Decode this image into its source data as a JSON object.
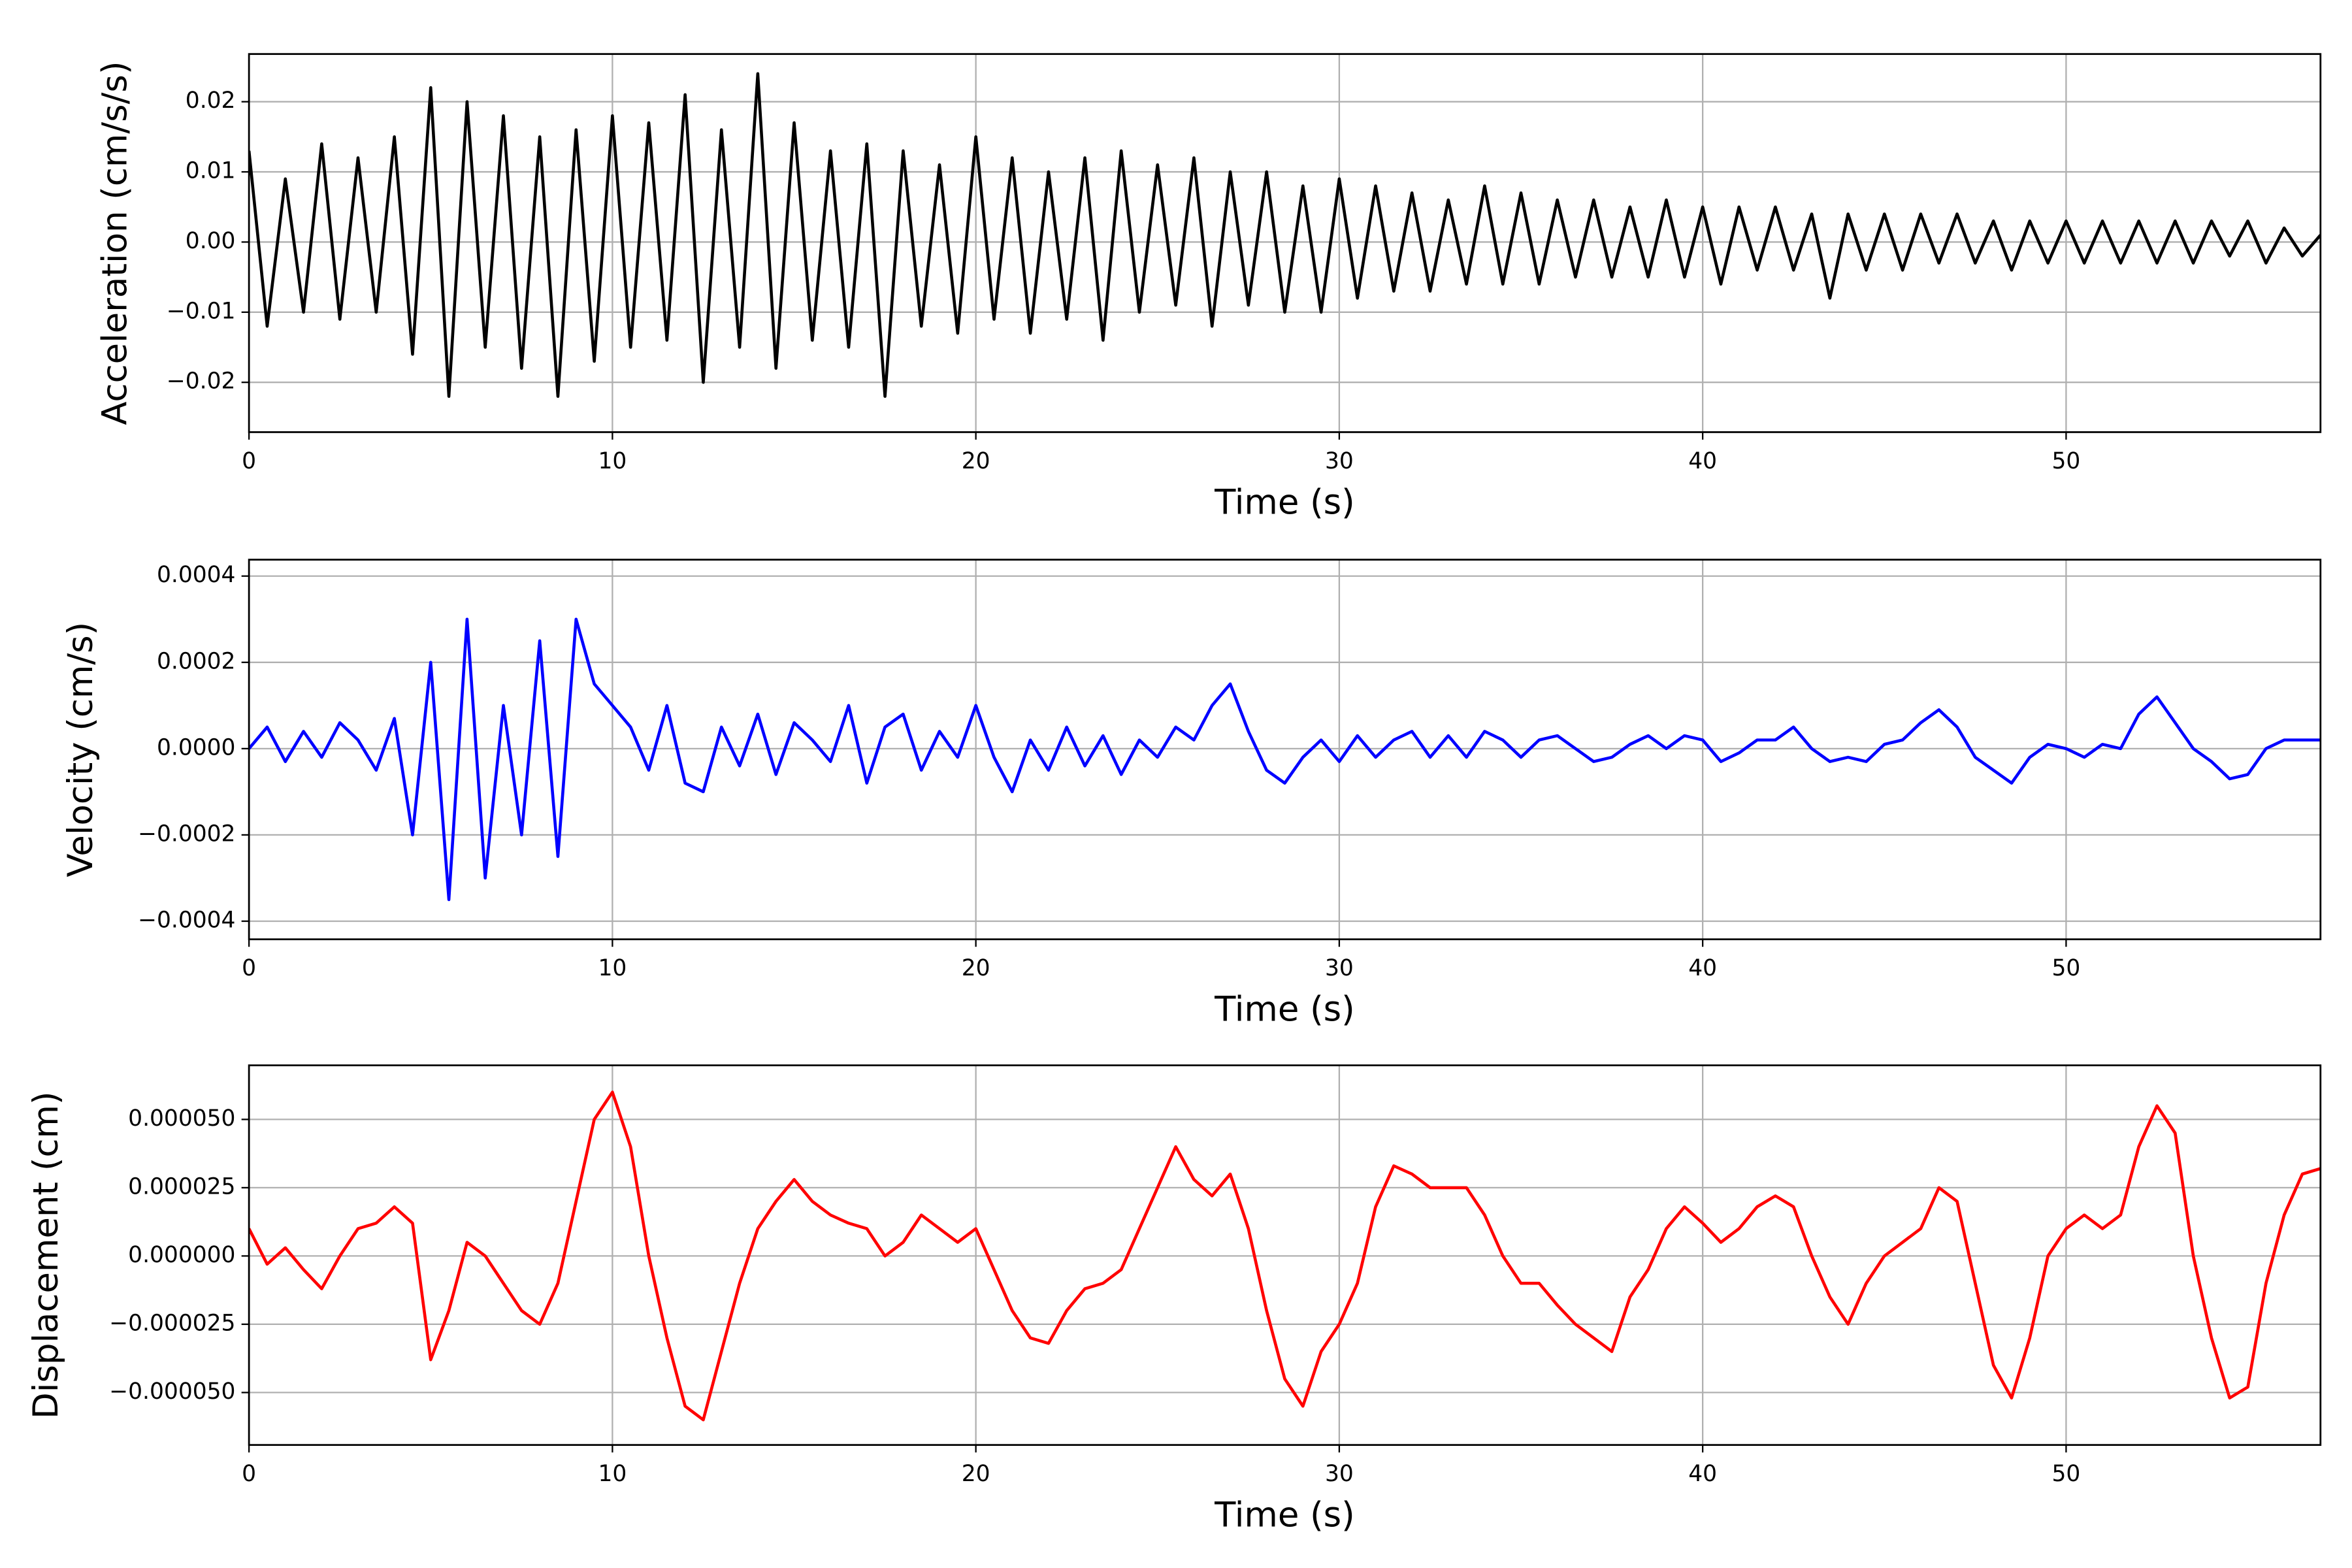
{
  "chart_data": [
    {
      "type": "line",
      "ylabel": "Acceleration (cm/s/s)",
      "xlabel": "Time (s)",
      "color": "#000000",
      "grid": true,
      "xlim": [
        0,
        57
      ],
      "xticks": [
        0,
        10,
        20,
        30,
        40,
        50
      ],
      "ylim": [
        -0.0271,
        0.0268
      ],
      "yticks": [
        {
          "value": -0.02,
          "label": "−0.02"
        },
        {
          "value": -0.01,
          "label": "−0.01"
        },
        {
          "value": 0,
          "label": "0.00"
        },
        {
          "value": 0.01,
          "label": "0.01"
        },
        {
          "value": 0.02,
          "label": "0.02"
        }
      ],
      "x": [
        0,
        0.5,
        1,
        1.5,
        2,
        2.5,
        3,
        3.5,
        4,
        4.5,
        5,
        5.5,
        6,
        6.5,
        7,
        7.5,
        8,
        8.5,
        9,
        9.5,
        10,
        10.5,
        11,
        11.5,
        12,
        12.5,
        13,
        13.5,
        14,
        14.5,
        15,
        15.5,
        16,
        16.5,
        17,
        17.5,
        18,
        18.5,
        19,
        19.5,
        20,
        20.5,
        21,
        21.5,
        22,
        22.5,
        23,
        23.5,
        24,
        24.5,
        25,
        25.5,
        26,
        26.5,
        27,
        27.5,
        28,
        28.5,
        29,
        29.5,
        30,
        30.5,
        31,
        31.5,
        32,
        32.5,
        33,
        33.5,
        34,
        34.5,
        35,
        35.5,
        36,
        36.5,
        37,
        37.5,
        38,
        38.5,
        39,
        39.5,
        40,
        40.5,
        41,
        41.5,
        42,
        42.5,
        43,
        43.5,
        44,
        44.5,
        45,
        45.5,
        46,
        46.5,
        47,
        47.5,
        48,
        48.5,
        49,
        49.5,
        50,
        50.5,
        51,
        51.5,
        52,
        52.5,
        53,
        53.5,
        54,
        54.5,
        55,
        55.5,
        56,
        56.5,
        57
      ],
      "values": [
        0.013,
        -0.012,
        0.009,
        -0.01,
        0.014,
        -0.011,
        0.012,
        -0.01,
        0.015,
        -0.016,
        0.022,
        -0.022,
        0.02,
        -0.015,
        0.018,
        -0.018,
        0.015,
        -0.022,
        0.016,
        -0.017,
        0.018,
        -0.015,
        0.017,
        -0.014,
        0.021,
        -0.02,
        0.016,
        -0.015,
        0.024,
        -0.018,
        0.017,
        -0.014,
        0.013,
        -0.015,
        0.014,
        -0.022,
        0.013,
        -0.012,
        0.011,
        -0.013,
        0.015,
        -0.011,
        0.012,
        -0.013,
        0.01,
        -0.011,
        0.012,
        -0.014,
        0.013,
        -0.01,
        0.011,
        -0.009,
        0.012,
        -0.012,
        0.01,
        -0.009,
        0.01,
        -0.01,
        0.008,
        -0.01,
        0.009,
        -0.008,
        0.008,
        -0.007,
        0.007,
        -0.007,
        0.006,
        -0.006,
        0.008,
        -0.006,
        0.007,
        -0.006,
        0.006,
        -0.005,
        0.006,
        -0.005,
        0.005,
        -0.005,
        0.006,
        -0.005,
        0.005,
        -0.006,
        0.005,
        -0.004,
        0.005,
        -0.004,
        0.004,
        -0.008,
        0.004,
        -0.004,
        0.004,
        -0.004,
        0.004,
        -0.003,
        0.004,
        -0.003,
        0.003,
        -0.004,
        0.003,
        -0.003,
        0.003,
        -0.003,
        0.003,
        -0.003,
        0.003,
        -0.003,
        0.003,
        -0.003,
        0.003,
        -0.002,
        0.003,
        -0.003,
        0.002,
        -0.002,
        0.001
      ]
    },
    {
      "type": "line",
      "ylabel": "Velocity (cm/s)",
      "xlabel": "Time (s)",
      "color": "#0000ff",
      "grid": true,
      "xlim": [
        0,
        57
      ],
      "xticks": [
        0,
        10,
        20,
        30,
        40,
        50
      ],
      "ylim": [
        -0.000442,
        0.000438
      ],
      "yticks": [
        {
          "value": -0.0004,
          "label": "−0.0004"
        },
        {
          "value": -0.0002,
          "label": "−0.0002"
        },
        {
          "value": 0,
          "label": "0.0000"
        },
        {
          "value": 0.0002,
          "label": "0.0002"
        },
        {
          "value": 0.0004,
          "label": "0.0004"
        }
      ],
      "x": [
        0,
        0.5,
        1,
        1.5,
        2,
        2.5,
        3,
        3.5,
        4,
        4.5,
        5,
        5.5,
        6,
        6.5,
        7,
        7.5,
        8,
        8.5,
        9,
        9.5,
        10,
        10.5,
        11,
        11.5,
        12,
        12.5,
        13,
        13.5,
        14,
        14.5,
        15,
        15.5,
        16,
        16.5,
        17,
        17.5,
        18,
        18.5,
        19,
        19.5,
        20,
        20.5,
        21,
        21.5,
        22,
        22.5,
        23,
        23.5,
        24,
        24.5,
        25,
        25.5,
        26,
        26.5,
        27,
        27.5,
        28,
        28.5,
        29,
        29.5,
        30,
        30.5,
        31,
        31.5,
        32,
        32.5,
        33,
        33.5,
        34,
        34.5,
        35,
        35.5,
        36,
        36.5,
        37,
        37.5,
        38,
        38.5,
        39,
        39.5,
        40,
        40.5,
        41,
        41.5,
        42,
        42.5,
        43,
        43.5,
        44,
        44.5,
        45,
        45.5,
        46,
        46.5,
        47,
        47.5,
        48,
        48.5,
        49,
        49.5,
        50,
        50.5,
        51,
        51.5,
        52,
        52.5,
        53,
        53.5,
        54,
        54.5,
        55,
        55.5,
        56,
        56.5,
        57
      ],
      "values": [
        0,
        5e-05,
        -3e-05,
        4e-05,
        -2e-05,
        6e-05,
        2e-05,
        -5e-05,
        7e-05,
        -0.0002,
        0.0002,
        -0.00035,
        0.0003,
        -0.0003,
        0.0001,
        -0.0002,
        0.00025,
        -0.00025,
        0.0003,
        0.00015,
        0.0001,
        5e-05,
        -5e-05,
        0.0001,
        -8e-05,
        -0.0001,
        5e-05,
        -4e-05,
        8e-05,
        -6e-05,
        6e-05,
        2e-05,
        -3e-05,
        0.0001,
        -8e-05,
        5e-05,
        8e-05,
        -5e-05,
        4e-05,
        -2e-05,
        0.0001,
        -2e-05,
        -0.0001,
        2e-05,
        -5e-05,
        5e-05,
        -4e-05,
        3e-05,
        -6e-05,
        2e-05,
        -2e-05,
        5e-05,
        2e-05,
        0.0001,
        0.00015,
        4e-05,
        -5e-05,
        -8e-05,
        -2e-05,
        2e-05,
        -3e-05,
        3e-05,
        -2e-05,
        2e-05,
        4e-05,
        -2e-05,
        3e-05,
        -2e-05,
        4e-05,
        2e-05,
        -2e-05,
        2e-05,
        3e-05,
        0,
        -3e-05,
        -2e-05,
        1e-05,
        3e-05,
        0,
        3e-05,
        2e-05,
        -3e-05,
        -1e-05,
        2e-05,
        2e-05,
        5e-05,
        0,
        -3e-05,
        -2e-05,
        -3e-05,
        1e-05,
        2e-05,
        6e-05,
        9e-05,
        5e-05,
        -2e-05,
        -5e-05,
        -8e-05,
        -2e-05,
        1e-05,
        0,
        -2e-05,
        1e-05,
        0,
        8e-05,
        0.00012,
        6e-05,
        0,
        -3e-05,
        -7e-05,
        -6e-05,
        0,
        2e-05,
        2e-05,
        2e-05
      ]
    },
    {
      "type": "line",
      "ylabel": "Displacement (cm)",
      "xlabel": "Time (s)",
      "color": "#ff0000",
      "grid": true,
      "xlim": [
        0,
        57
      ],
      "xticks": [
        0,
        10,
        20,
        30,
        40,
        50
      ],
      "ylim": [
        -6.92e-05,
        6.98e-05
      ],
      "yticks": [
        {
          "value": -5e-05,
          "label": "−0.000050"
        },
        {
          "value": -2.5e-05,
          "label": "−0.000025"
        },
        {
          "value": 0,
          "label": "0.000000"
        },
        {
          "value": 2.5e-05,
          "label": "0.000025"
        },
        {
          "value": 5e-05,
          "label": "0.000050"
        }
      ],
      "x": [
        0,
        0.5,
        1,
        1.5,
        2,
        2.5,
        3,
        3.5,
        4,
        4.5,
        5,
        5.5,
        6,
        6.5,
        7,
        7.5,
        8,
        8.5,
        9,
        9.5,
        10,
        10.5,
        11,
        11.5,
        12,
        12.5,
        13,
        13.5,
        14,
        14.5,
        15,
        15.5,
        16,
        16.5,
        17,
        17.5,
        18,
        18.5,
        19,
        19.5,
        20,
        20.5,
        21,
        21.5,
        22,
        22.5,
        23,
        23.5,
        24,
        24.5,
        25,
        25.5,
        26,
        26.5,
        27,
        27.5,
        28,
        28.5,
        29,
        29.5,
        30,
        30.5,
        31,
        31.5,
        32,
        32.5,
        33,
        33.5,
        34,
        34.5,
        35,
        35.5,
        36,
        36.5,
        37,
        37.5,
        38,
        38.5,
        39,
        39.5,
        40,
        40.5,
        41,
        41.5,
        42,
        42.5,
        43,
        43.5,
        44,
        44.5,
        45,
        45.5,
        46,
        46.5,
        47,
        47.5,
        48,
        48.5,
        49,
        49.5,
        50,
        50.5,
        51,
        51.5,
        52,
        52.5,
        53,
        53.5,
        54,
        54.5,
        55,
        55.5,
        56,
        56.5,
        57
      ],
      "values": [
        1e-05,
        -3e-06,
        3e-06,
        -5e-06,
        -1.2e-05,
        0,
        1e-05,
        1.2e-05,
        1.8e-05,
        1.2e-05,
        -3.8e-05,
        -2e-05,
        5e-06,
        0,
        -1e-05,
        -2e-05,
        -2.5e-05,
        -1e-05,
        2e-05,
        5e-05,
        6e-05,
        4e-05,
        0,
        -3e-05,
        -5.5e-05,
        -6e-05,
        -3.5e-05,
        -1e-05,
        1e-05,
        2e-05,
        2.8e-05,
        2e-05,
        1.5e-05,
        1.2e-05,
        1e-05,
        0,
        5e-06,
        1.5e-05,
        1e-05,
        5e-06,
        1e-05,
        -5e-06,
        -2e-05,
        -3e-05,
        -3.2e-05,
        -2e-05,
        -1.2e-05,
        -1e-05,
        -5e-06,
        1e-05,
        2.5e-05,
        4e-05,
        2.8e-05,
        2.2e-05,
        3e-05,
        1e-05,
        -2e-05,
        -4.5e-05,
        -5.5e-05,
        -3.5e-05,
        -2.5e-05,
        -1e-05,
        1.8e-05,
        3.3e-05,
        3e-05,
        2.5e-05,
        2.5e-05,
        2.5e-05,
        1.5e-05,
        0,
        -1e-05,
        -1e-05,
        -1.8e-05,
        -2.5e-05,
        -3e-05,
        -3.5e-05,
        -1.5e-05,
        -5e-06,
        1e-05,
        1.8e-05,
        1.2e-05,
        5e-06,
        1e-05,
        1.8e-05,
        2.2e-05,
        1.8e-05,
        0,
        -1.5e-05,
        -2.5e-05,
        -1e-05,
        0,
        5e-06,
        1e-05,
        2.5e-05,
        2e-05,
        -1e-05,
        -4e-05,
        -5.2e-05,
        -3e-05,
        0,
        1e-05,
        1.5e-05,
        1e-05,
        1.5e-05,
        4e-05,
        5.5e-05,
        4.5e-05,
        0,
        -3e-05,
        -5.2e-05,
        -4.8e-05,
        -1e-05,
        1.5e-05,
        3e-05,
        3.2e-05
      ]
    }
  ]
}
